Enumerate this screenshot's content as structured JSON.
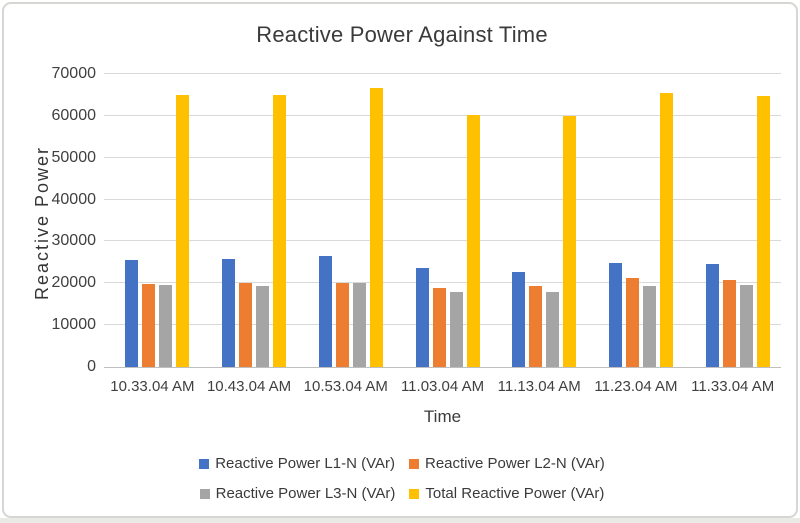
{
  "figure": {
    "title": "Reactive Power Against Time"
  },
  "chart_data": {
    "type": "bar",
    "title": "Reactive Power Against Time",
    "xlabel": "Time",
    "ylabel": "Reactive Power",
    "ylim": [
      0,
      70000
    ],
    "yticks": [
      0,
      10000,
      20000,
      30000,
      40000,
      50000,
      60000,
      70000
    ],
    "ytick_labels": [
      "0",
      "10000",
      "20000",
      "30000",
      "40000",
      "50000",
      "60000",
      "70000"
    ],
    "grid": true,
    "legend_position": "bottom",
    "legend_rows": [
      [
        0,
        1
      ],
      [
        2,
        3
      ]
    ],
    "categories": [
      "10.33.04 AM",
      "10.43.04 AM",
      "10.53.04 AM",
      "11.03.04 AM",
      "11.13.04 AM",
      "11.23.04 AM",
      "11.33.04 AM"
    ],
    "series": [
      {
        "name": "Reactive Power L1-N (VAr)",
        "color": "#4472C4",
        "values": [
          25600,
          25900,
          26600,
          23700,
          22700,
          24900,
          24500
        ]
      },
      {
        "name": "Reactive Power L2-N (VAr)",
        "color": "#ED7D31",
        "values": [
          19800,
          20000,
          20100,
          18800,
          19300,
          21200,
          20800
        ]
      },
      {
        "name": "Reactive Power L3-N (VAr)",
        "color": "#A5A5A5",
        "values": [
          19700,
          19300,
          20000,
          17800,
          18000,
          19300,
          19500
        ]
      },
      {
        "name": "Total Reactive Power (VAr)",
        "color": "#FFC000",
        "values": [
          65100,
          65100,
          66700,
          60300,
          59900,
          65400,
          64800
        ]
      }
    ]
  },
  "colors": {
    "gridline": "#D9D9D9",
    "axis_line": "#BFBFBF",
    "text": "#3F3F3F",
    "frame_border": "#D6D6D3"
  }
}
